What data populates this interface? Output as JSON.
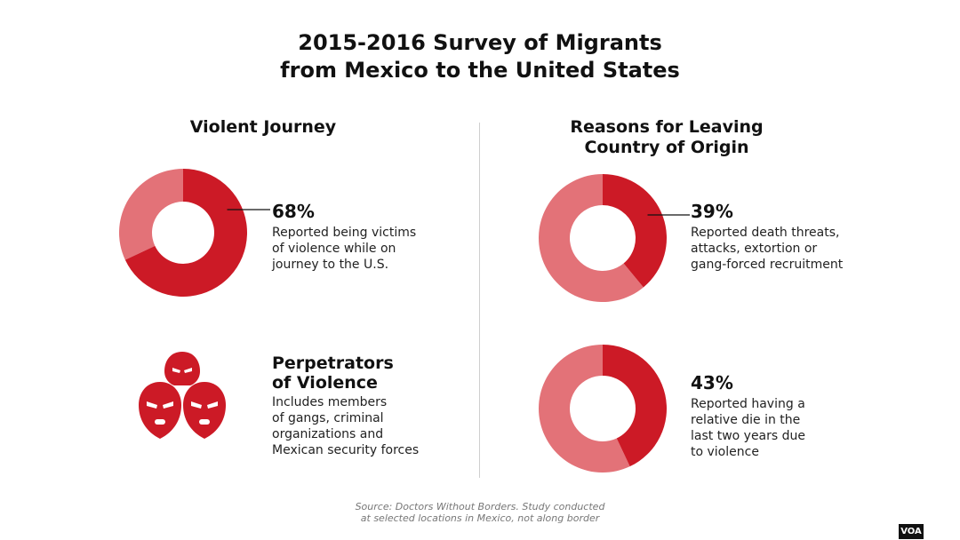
{
  "title": {
    "line1": "2015-2016 Survey of Migrants",
    "line2": "from Mexico to the United States"
  },
  "sections": {
    "left_heading": "Violent Journey",
    "right_heading_line1": "Reasons for Leaving",
    "right_heading_line2": "Country of Origin"
  },
  "perpetrators": {
    "title_line1": "Perpetrators",
    "title_line2": "of Violence",
    "desc_lines": [
      "Includes members",
      "of gangs, criminal",
      "organizations and",
      "Mexican security forces"
    ],
    "icon": "masked-figures-icon"
  },
  "source_lines": [
    "Source: Doctors Without Borders. Study conducted",
    "at selected locations in Mexico, not along border"
  ],
  "logo": "VOA",
  "colors": {
    "primary": "#cc1a26",
    "light": "#e37278",
    "text": "#111111",
    "source": "#777777"
  },
  "chart_data": [
    {
      "type": "pie",
      "value_pct": 68,
      "label": "68%",
      "desc_lines": [
        "Reported being victims",
        "of violence while on",
        "journey to the U.S."
      ]
    },
    {
      "type": "pie",
      "value_pct": 39,
      "label": "39%",
      "desc_lines": [
        "Reported death threats,",
        "attacks, extortion or",
        "gang-forced recruitment"
      ]
    },
    {
      "type": "pie",
      "value_pct": 43,
      "label": "43%",
      "desc_lines": [
        "Reported having a",
        "relative die in the",
        "last two years due",
        "to violence"
      ]
    }
  ]
}
